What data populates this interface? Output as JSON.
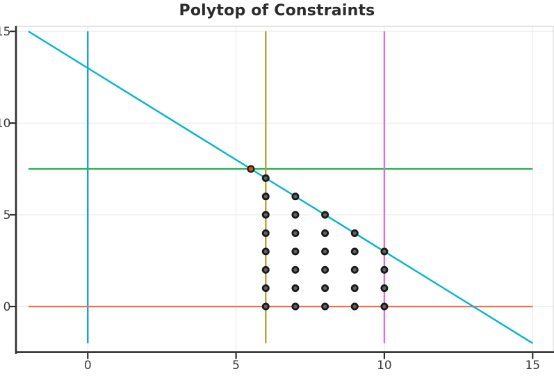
{
  "chart_data": {
    "type": "line",
    "title": "Polytop of Constraints",
    "xlabel": "",
    "ylabel": "",
    "xlim": [
      -2.42,
      15.72
    ],
    "ylim": [
      -2.48,
      15.27
    ],
    "grid": true,
    "legend": "none",
    "xticks": {
      "values": [
        0,
        5,
        10,
        15
      ],
      "labels": [
        "0",
        "5",
        "10",
        "15"
      ]
    },
    "yticks": {
      "values": [
        0,
        5,
        10,
        15
      ],
      "labels": [
        "0",
        "5",
        "10",
        "15"
      ]
    },
    "style": {
      "grid_color": "#ececec",
      "frame_color": "#d8d8d8",
      "axis_color": "#2d2d2d",
      "tick_label_color": "#383838",
      "title_color": "#2b2b2b",
      "background": "#ffffff"
    },
    "series": [
      {
        "name": "constraint-line-x-0",
        "orientation": "vertical",
        "color": "#0d9bf7",
        "points": [
          [
            0,
            -2
          ],
          [
            0,
            15
          ]
        ]
      },
      {
        "name": "constraint-line-y-0",
        "orientation": "horizontal",
        "color": "#ef7350",
        "points": [
          [
            -2,
            0
          ],
          [
            15,
            0
          ]
        ]
      },
      {
        "name": "constraint-line-y-7p5",
        "orientation": "horizontal",
        "color": "#2bb159",
        "points": [
          [
            -2,
            7.5
          ],
          [
            15,
            7.5
          ]
        ]
      },
      {
        "name": "constraint-line-x-10",
        "orientation": "vertical",
        "color": "#de6edd",
        "points": [
          [
            10,
            -2
          ],
          [
            10,
            15
          ]
        ]
      },
      {
        "name": "constraint-line-x-6",
        "orientation": "vertical",
        "color": "#b5a226",
        "points": [
          [
            6,
            -2
          ],
          [
            6,
            15
          ]
        ]
      },
      {
        "name": "objective-line-y-13-minus-x",
        "orientation": "diagonal",
        "color": "#00b6cb",
        "points": [
          [
            -2,
            15
          ],
          [
            15,
            -2
          ]
        ]
      }
    ],
    "scatter": {
      "name": "feasible-integer-points",
      "marker": "circle",
      "fill": "#616161",
      "stroke": "#191919",
      "points": [
        [
          6,
          0
        ],
        [
          6,
          1
        ],
        [
          6,
          2
        ],
        [
          6,
          3
        ],
        [
          6,
          4
        ],
        [
          6,
          5
        ],
        [
          6,
          6
        ],
        [
          6,
          7
        ],
        [
          7,
          0
        ],
        [
          7,
          1
        ],
        [
          7,
          2
        ],
        [
          7,
          3
        ],
        [
          7,
          4
        ],
        [
          7,
          5
        ],
        [
          7,
          6
        ],
        [
          8,
          0
        ],
        [
          8,
          1
        ],
        [
          8,
          2
        ],
        [
          8,
          3
        ],
        [
          8,
          4
        ],
        [
          8,
          5
        ],
        [
          9,
          0
        ],
        [
          9,
          1
        ],
        [
          9,
          2
        ],
        [
          9,
          3
        ],
        [
          9,
          4
        ],
        [
          10,
          0
        ],
        [
          10,
          1
        ],
        [
          10,
          2
        ],
        [
          10,
          3
        ]
      ]
    },
    "highlight_point": {
      "name": "intersection-point",
      "x": 5.5,
      "y": 7.5,
      "fill": "#c75020",
      "stroke": "#2d1405"
    }
  }
}
